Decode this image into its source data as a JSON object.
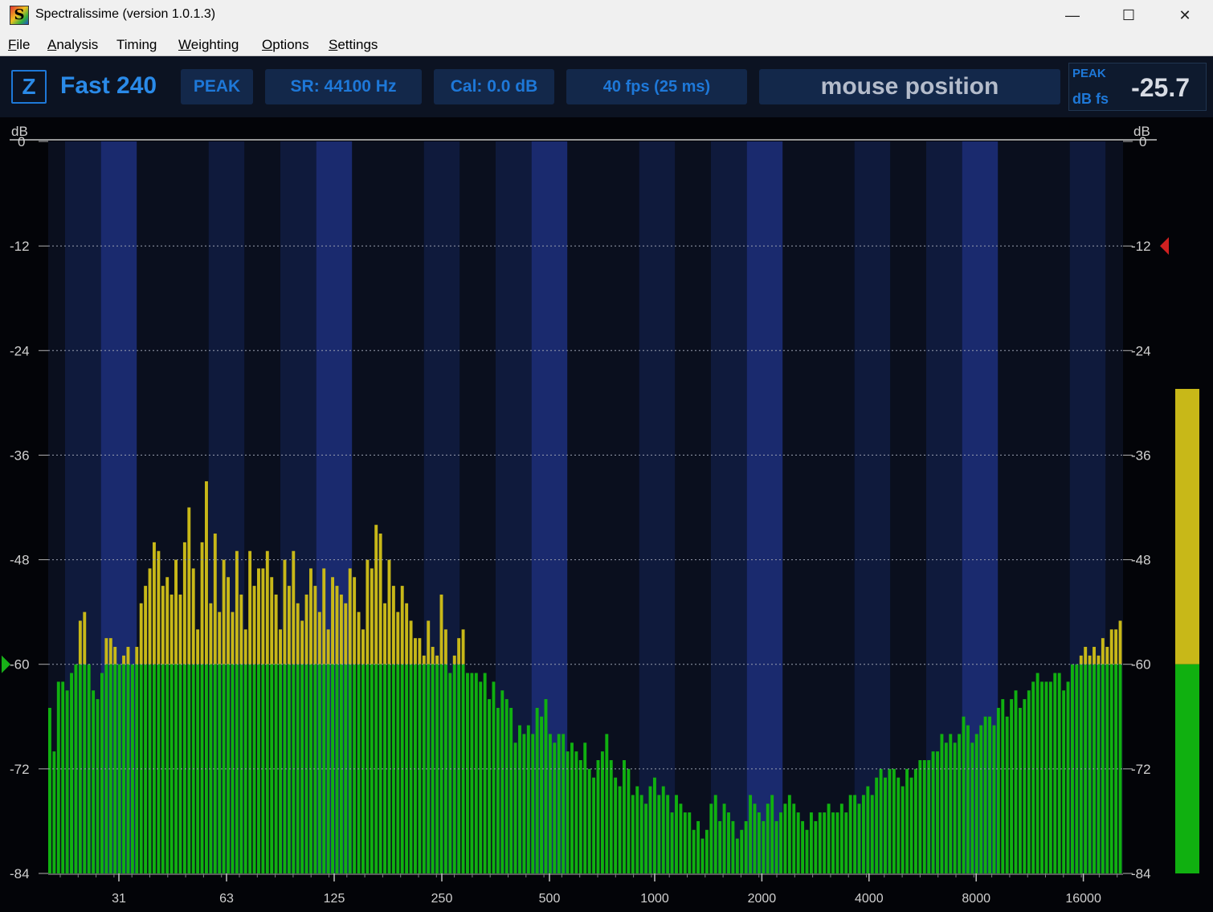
{
  "window": {
    "title": "Spectralissime (version 1.0.1.3)",
    "app_icon_letter": "S",
    "minimize": "—",
    "maximize": "☐",
    "close": "✕"
  },
  "menu": [
    {
      "label": "File",
      "u": "F",
      "rest": "ile"
    },
    {
      "label": "Analysis",
      "u": "A",
      "rest": "nalysis"
    },
    {
      "label": "Timing",
      "u": "",
      "rest": "Timing"
    },
    {
      "label": "Weighting",
      "u": "W",
      "rest": "eighting"
    },
    {
      "label": "Options",
      "u": "O",
      "rest": "ptions"
    },
    {
      "label": "Settings",
      "u": "S",
      "rest": "ettings"
    }
  ],
  "toolbar": {
    "weighting_button": "Z",
    "mode_label": "Fast 240",
    "detector": "PEAK",
    "sample_rate": "SR: 44100 Hz",
    "calibration": "Cal:  0.0 dB",
    "frame_rate": "40 fps (25 ms)",
    "mouse_position": "mouse position",
    "peak_label": "PEAK",
    "peak_unit": "dB fs",
    "peak_value": "-25.7"
  },
  "colors": {
    "accent": "#1e78d8",
    "band_dark": "#0a0f1e",
    "band_mid": "#0f1a3c",
    "band_blue": "#1a2a6e",
    "bar_green": "#10b010",
    "bar_yellow": "#c8b818",
    "marker_green": "#18b018",
    "marker_red": "#d02020"
  },
  "chart_data": {
    "type": "bar",
    "y_unit_left": "dB",
    "y_unit_right": "dB",
    "ylim": [
      -84,
      0
    ],
    "y_ticks": [
      "0",
      "-12",
      "-24",
      "-36",
      "-48",
      "-60",
      "-72",
      "-84"
    ],
    "x_scale": "log",
    "x_ticks": [
      "31",
      "63",
      "125",
      "250",
      "500",
      "1000",
      "2000",
      "4000",
      "8000",
      "16000"
    ],
    "grid": true,
    "threshold_db": -60,
    "left_marker_db": -60,
    "right_marker_db": -12,
    "meter_peak_db": -28.4,
    "meter_threshold_db": -60,
    "meter_min_db": -84,
    "bar_values_db": [
      -65,
      -70,
      -62,
      -62,
      -63,
      -61,
      -60,
      -55,
      -54,
      -60,
      -63,
      -64,
      -61,
      -57,
      -57,
      -58,
      -60,
      -59,
      -58,
      -60,
      -58,
      -53,
      -51,
      -49,
      -46,
      -47,
      -51,
      -50,
      -52,
      -48,
      -52,
      -46,
      -42,
      -49,
      -56,
      -46,
      -39,
      -53,
      -45,
      -54,
      -48,
      -50,
      -54,
      -47,
      -52,
      -56,
      -47,
      -51,
      -49,
      -49,
      -47,
      -50,
      -52,
      -56,
      -48,
      -51,
      -47,
      -53,
      -55,
      -52,
      -49,
      -51,
      -54,
      -49,
      -56,
      -50,
      -51,
      -52,
      -53,
      -49,
      -50,
      -54,
      -56,
      -48,
      -49,
      -44,
      -45,
      -53,
      -48,
      -51,
      -54,
      -51,
      -53,
      -55,
      -57,
      -57,
      -59,
      -55,
      -58,
      -59,
      -52,
      -56,
      -61,
      -59,
      -57,
      -56,
      -61,
      -61,
      -61,
      -62,
      -61,
      -64,
      -62,
      -65,
      -63,
      -64,
      -65,
      -69,
      -67,
      -68,
      -67,
      -68,
      -65,
      -66,
      -64,
      -68,
      -69,
      -68,
      -68,
      -70,
      -69,
      -70,
      -71,
      -69,
      -72,
      -73,
      -71,
      -70,
      -68,
      -71,
      -73,
      -74,
      -71,
      -72,
      -75,
      -74,
      -75,
      -76,
      -74,
      -73,
      -75,
      -74,
      -75,
      -77,
      -75,
      -76,
      -77,
      -77,
      -79,
      -78,
      -80,
      -79,
      -76,
      -75,
      -78,
      -76,
      -77,
      -78,
      -80,
      -79,
      -78,
      -75,
      -76,
      -77,
      -78,
      -76,
      -75,
      -78,
      -77,
      -76,
      -75,
      -76,
      -77,
      -78,
      -79,
      -77,
      -78,
      -77,
      -77,
      -76,
      -77,
      -77,
      -76,
      -77,
      -75,
      -75,
      -76,
      -75,
      -74,
      -75,
      -73,
      -72,
      -73,
      -72,
      -72,
      -73,
      -74,
      -72,
      -73,
      -72,
      -71,
      -71,
      -71,
      -70,
      -70,
      -68,
      -69,
      -68,
      -69,
      -68,
      -66,
      -67,
      -69,
      -68,
      -67,
      -66,
      -66,
      -67,
      -65,
      -64,
      -66,
      -64,
      -63,
      -65,
      -64,
      -63,
      -62,
      -61,
      -62,
      -62,
      -62,
      -61,
      -61,
      -63,
      -62,
      -60,
      -60,
      -59,
      -58,
      -59,
      -58,
      -59,
      -57,
      -58,
      -56,
      -56,
      -55
    ]
  }
}
